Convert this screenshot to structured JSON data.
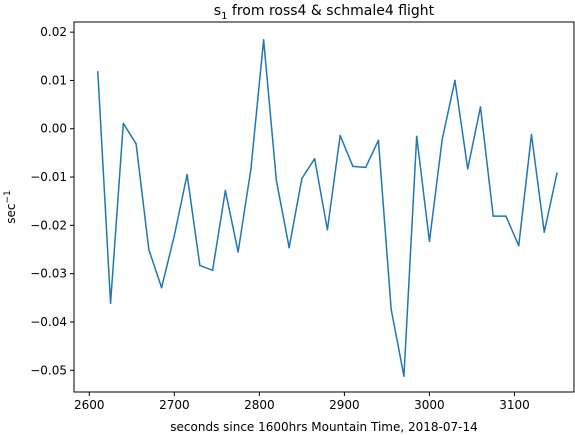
{
  "chart_data": {
    "type": "line",
    "title_main": "s",
    "title_sub": "1",
    "title_rest": " from ross4 & schmale4 flight",
    "xlabel": "seconds since 1600hrs Mountain Time, 2018-07-14",
    "ylabel_main": "sec",
    "ylabel_sup": "−1",
    "xlim": [
      2582,
      3170
    ],
    "ylim": [
      -0.0545,
      0.0221
    ],
    "x_ticks": [
      2600,
      2700,
      2800,
      2900,
      3000,
      3100
    ],
    "x_tick_labels": [
      "2600",
      "2700",
      "2800",
      "2900",
      "3000",
      "3100"
    ],
    "y_ticks": [
      0.02,
      0.01,
      0.0,
      -0.01,
      -0.02,
      -0.03,
      -0.04,
      -0.05
    ],
    "y_tick_labels": [
      "0.02",
      "0.01",
      "0.00",
      "−0.01",
      "−0.02",
      "−0.03",
      "−0.04",
      "−0.05"
    ],
    "grid": false,
    "line_color": "#1f77b4",
    "series": [
      {
        "x": [
          2610,
          2625,
          2640,
          2655,
          2670,
          2685,
          2700,
          2715,
          2730,
          2745,
          2760,
          2775,
          2790,
          2805,
          2820,
          2835,
          2850,
          2865,
          2880,
          2895,
          2910,
          2925,
          2940,
          2955,
          2970,
          2985,
          3000,
          3015,
          3030,
          3045,
          3060,
          3075,
          3090,
          3105,
          3120,
          3135,
          3150
        ],
        "values": [
          0.0118,
          -0.0361,
          0.0011,
          -0.0031,
          -0.025,
          -0.0329,
          -0.0221,
          -0.0095,
          -0.0283,
          -0.0293,
          -0.0128,
          -0.0255,
          -0.0084,
          0.0184,
          -0.0107,
          -0.0246,
          -0.0103,
          -0.0062,
          -0.0209,
          -0.0014,
          -0.0078,
          -0.008,
          -0.0024,
          -0.0374,
          -0.0512,
          -0.0016,
          -0.0233,
          -0.0022,
          0.01,
          -0.0083,
          0.0045,
          -0.0181,
          -0.0181,
          -0.0242,
          -0.0012,
          -0.0214,
          -0.0092
        ]
      }
    ]
  }
}
